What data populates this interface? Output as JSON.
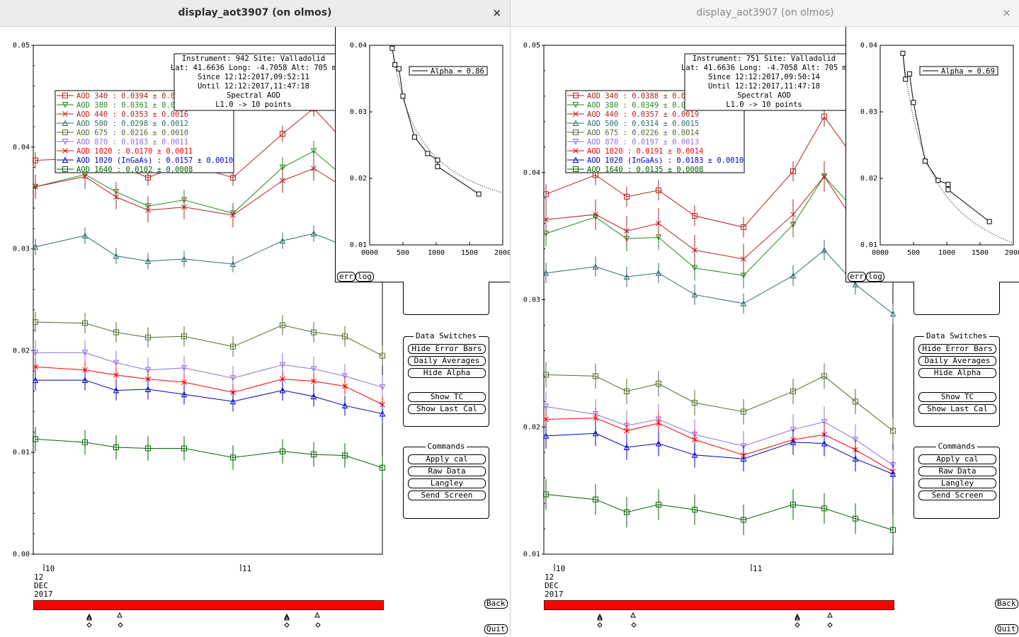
{
  "windows": [
    {
      "title": "display_aot3907 (on olmos)",
      "close_label": "×",
      "main_chart": {
        "y_ticks": [
          "0.05",
          "0.04",
          "0.03",
          "0.02",
          "0.01",
          "0.00"
        ],
        "x_ticks": [
          "10",
          "11"
        ],
        "date": [
          "12",
          "DEC",
          "2017"
        ],
        "info": [
          "Instrument: 942 Site: Valladolid",
          "Lat: 41.6636 Long: -4.7058 Alt: 705 m",
          "Since 12:12:2017,09:52:11",
          "Until 12:12:2017,11:47:18",
          "Spectral AOD",
          "L1.0 -> 10 points"
        ],
        "legend": [
          {
            "label": "AOD 340  : 0.0394 ± 0.0",
            "color": "#b22222"
          },
          {
            "label": "AOD 380  : 0.0361 ± 0.0",
            "color": "#228b22"
          },
          {
            "label": "AOD 440  : 0.0353 ± 0.0016",
            "color": "#b22222"
          },
          {
            "label": "AOD 500  : 0.0298 ± 0.0012",
            "color": "#2e6b6b"
          },
          {
            "label": "AOD 675  : 0.0216 ± 0.0010",
            "color": "#556b2f"
          },
          {
            "label": "AOD 870  : 0.0183 ± 0.0011",
            "color": "#9370db"
          },
          {
            "label": "AOD 1020  : 0.0170 ± 0.0011",
            "color": "#ff0000"
          },
          {
            "label": "AOD 1020 (InGaAs)  : 0.0157 ± 0.0010",
            "color": "#0000cd"
          },
          {
            "label": "AOD 1640  : 0.0102 ± 0.0008",
            "color": "#006400"
          }
        ]
      },
      "inset": {
        "y_ticks": [
          "0.04",
          "0.03",
          "0.02",
          "0.01"
        ],
        "x_ticks": [
          "0000",
          "500",
          "1000",
          "1500",
          "2000"
        ],
        "alpha_label": "Alpha = 0.86",
        "err_label": "err",
        "log_label": "log"
      },
      "data_switches": {
        "title": "Data Switches",
        "buttons": [
          "Hide Error Bars",
          "Daily Averages",
          "Hide Alpha",
          "Show TC",
          "Show Last Cal"
        ]
      },
      "commands": {
        "title": "Commands",
        "buttons": [
          "Apply cal",
          "Raw Data",
          "Langley",
          "Send Screen"
        ]
      },
      "back_label": "Back",
      "quit_label": "Quit"
    },
    {
      "title": "display_aot3907 (on olmos)",
      "close_label": "×",
      "main_chart": {
        "y_ticks": [
          "0.05",
          "0.04",
          "0.03",
          "0.02",
          "0.01"
        ],
        "x_ticks": [
          "10",
          "11"
        ],
        "date": [
          "12",
          "DEC",
          "2017"
        ],
        "info": [
          "Instrument: 751 Site: Valladolid",
          "Lat: 41.6636 Long: -4.7058 Alt: 705 m",
          "Since 12:12:2017,09:50:14",
          "Until 12:12:2017,11:47:18",
          "Spectral AOD",
          "L1.0 -> 10 points"
        ],
        "legend": [
          {
            "label": "AOD 340  : 0.0388 ± 0.0",
            "color": "#b22222"
          },
          {
            "label": "AOD 380  : 0.0349 ± 0.0",
            "color": "#228b22"
          },
          {
            "label": "AOD 440  : 0.0357 ± 0.0019",
            "color": "#b22222"
          },
          {
            "label": "AOD 500  : 0.0314 ± 0.0015",
            "color": "#2e6b6b"
          },
          {
            "label": "AOD 675  : 0.0226 ± 0.0014",
            "color": "#556b2f"
          },
          {
            "label": "AOD 870  : 0.0197 ± 0.0013",
            "color": "#9370db"
          },
          {
            "label": "AOD 1020  : 0.0191 ± 0.0014",
            "color": "#ff0000"
          },
          {
            "label": "AOD 1020 (InGaAs)  : 0.0183 ± 0.0010",
            "color": "#0000cd"
          },
          {
            "label": "AOD 1640  : 0.0135 ± 0.0008",
            "color": "#006400"
          }
        ]
      },
      "inset": {
        "y_ticks": [
          "0.04",
          "0.03",
          "0.02",
          "0.01"
        ],
        "x_ticks": [
          "0000",
          "500",
          "1000",
          "1500",
          "2000"
        ],
        "alpha_label": "Alpha = 0.69",
        "err_label": "err",
        "log_label": "log"
      },
      "data_switches": {
        "title": "Data Switches",
        "buttons": [
          "Hide Error Bars",
          "Daily Averages",
          "Hide Alpha",
          "Show TC",
          "Show Last Cal"
        ]
      },
      "commands": {
        "title": "Commands",
        "buttons": [
          "Apply cal",
          "Raw Data",
          "Langley",
          "Send Screen"
        ]
      },
      "back_label": "Back",
      "quit_label": "Quit"
    }
  ],
  "chart_data": [
    {
      "type": "line",
      "ylim": [
        0,
        0.05
      ],
      "x": [
        "09:52",
        "10:04",
        "10:10",
        "10:17",
        "10:24",
        "10:41",
        "10:56",
        "11:06",
        "11:16",
        "11:27"
      ],
      "series": [
        {
          "name": "AOD 340",
          "color": "#b22222",
          "values": [
            0.0387,
            0.0389,
            0.0383,
            0.037,
            0.0384,
            0.037,
            0.0413,
            0.0438,
            0.0405,
            null
          ]
        },
        {
          "name": "AOD 380",
          "color": "#228b22",
          "values": [
            0.0361,
            0.0373,
            0.0356,
            0.0342,
            0.0348,
            0.0335,
            0.038,
            0.0396,
            0.037,
            null
          ]
        },
        {
          "name": "AOD 440",
          "color": "#b22222",
          "values": [
            0.0361,
            0.0371,
            0.0351,
            0.0338,
            0.0341,
            0.0333,
            0.0367,
            0.0379,
            0.036,
            null
          ]
        },
        {
          "name": "AOD 500",
          "color": "#2e6b6b",
          "values": [
            0.0302,
            0.0313,
            0.0293,
            0.0288,
            0.029,
            0.0285,
            0.0308,
            0.0315,
            0.0303,
            null
          ]
        },
        {
          "name": "AOD 675",
          "color": "#556b2f",
          "values": [
            0.0228,
            0.0227,
            0.0218,
            0.0213,
            0.0214,
            0.0204,
            0.0225,
            0.0218,
            0.0214,
            0.0195
          ]
        },
        {
          "name": "AOD 870",
          "color": "#9370db",
          "values": [
            0.0198,
            0.0198,
            0.0188,
            0.0181,
            0.0183,
            0.0173,
            0.0186,
            0.0182,
            0.0175,
            0.0164
          ]
        },
        {
          "name": "AOD 1020",
          "color": "#ff0000",
          "values": [
            0.0184,
            0.0181,
            0.0176,
            0.0172,
            0.0169,
            0.0159,
            0.0172,
            0.017,
            0.0165,
            0.0147
          ]
        },
        {
          "name": "AOD 1020 (InGaAs)",
          "color": "#0000cd",
          "values": [
            0.0171,
            0.0171,
            0.0161,
            0.0162,
            0.0157,
            0.015,
            0.0161,
            0.0155,
            0.0146,
            0.0138
          ]
        },
        {
          "name": "AOD 1640",
          "color": "#006400",
          "values": [
            0.0113,
            0.011,
            0.0105,
            0.0104,
            0.0104,
            0.0095,
            0.0101,
            0.0098,
            0.0097,
            0.0085
          ]
        }
      ]
    },
    {
      "type": "line",
      "ylim": [
        0,
        0.04
      ],
      "xlim": [
        0,
        2000
      ],
      "series": [
        {
          "name": "Spectral AOD",
          "values": [
            [
              340,
              0.0394
            ],
            [
              380,
              0.0361
            ],
            [
              440,
              0.0353
            ],
            [
              500,
              0.0298
            ],
            [
              675,
              0.0216
            ],
            [
              870,
              0.0183
            ],
            [
              1020,
              0.017
            ],
            [
              1020,
              0.0157
            ],
            [
              1640,
              0.0102
            ]
          ]
        }
      ]
    },
    {
      "type": "line",
      "ylim": [
        0.01,
        0.05
      ],
      "x": [
        "09:50",
        "10:04",
        "10:10",
        "10:17",
        "10:24",
        "10:41",
        "10:56",
        "11:06",
        "11:16",
        "11:27"
      ],
      "series": [
        {
          "name": "AOD 340",
          "color": "#b22222",
          "values": [
            0.0383,
            0.0398,
            0.0381,
            0.0386,
            0.0366,
            0.0357,
            0.0401,
            0.0444,
            0.041,
            null
          ]
        },
        {
          "name": "AOD 380",
          "color": "#228b22",
          "values": [
            0.0352,
            0.0365,
            0.0348,
            0.0349,
            0.0325,
            0.0319,
            0.0359,
            0.0397,
            0.037,
            null
          ]
        },
        {
          "name": "AOD 440",
          "color": "#b22222",
          "values": [
            0.0363,
            0.0367,
            0.0354,
            0.036,
            0.0339,
            0.0332,
            0.0367,
            0.0397,
            0.036,
            null
          ]
        },
        {
          "name": "AOD 500",
          "color": "#2e6b6b",
          "values": [
            0.0321,
            0.0326,
            0.0318,
            0.0321,
            0.0304,
            0.0297,
            0.0319,
            0.0339,
            0.0312,
            0.0289
          ]
        },
        {
          "name": "AOD 675",
          "color": "#556b2f",
          "values": [
            0.0241,
            0.024,
            0.0228,
            0.0234,
            0.0219,
            0.0212,
            0.0228,
            0.024,
            0.022,
            0.0197
          ]
        },
        {
          "name": "AOD 870",
          "color": "#9370db",
          "values": [
            0.0216,
            0.021,
            0.0201,
            0.0206,
            0.0194,
            0.0185,
            0.0198,
            0.0204,
            0.019,
            0.017
          ]
        },
        {
          "name": "AOD 1020",
          "color": "#ff0000",
          "values": [
            0.0206,
            0.0207,
            0.0197,
            0.0203,
            0.019,
            0.0178,
            0.019,
            0.0194,
            0.0182,
            0.0165
          ]
        },
        {
          "name": "AOD 1020 (InGaAs)",
          "color": "#0000cd",
          "values": [
            0.0193,
            0.0195,
            0.0184,
            0.0187,
            0.0178,
            0.0175,
            0.0188,
            0.0187,
            0.0175,
            0.0163
          ]
        },
        {
          "name": "AOD 1640",
          "color": "#006400",
          "values": [
            0.0147,
            0.0143,
            0.0133,
            0.0139,
            0.0135,
            0.0127,
            0.0139,
            0.0136,
            0.0128,
            0.0119
          ]
        }
      ]
    },
    {
      "type": "line",
      "ylim": [
        0.01,
        0.04
      ],
      "xlim": [
        0,
        2000
      ],
      "series": [
        {
          "name": "Spectral AOD",
          "values": [
            [
              340,
              0.0388
            ],
            [
              380,
              0.0349
            ],
            [
              440,
              0.0357
            ],
            [
              500,
              0.0314
            ],
            [
              675,
              0.0226
            ],
            [
              870,
              0.0197
            ],
            [
              1020,
              0.0191
            ],
            [
              1020,
              0.0183
            ],
            [
              1640,
              0.0135
            ]
          ]
        }
      ]
    }
  ]
}
